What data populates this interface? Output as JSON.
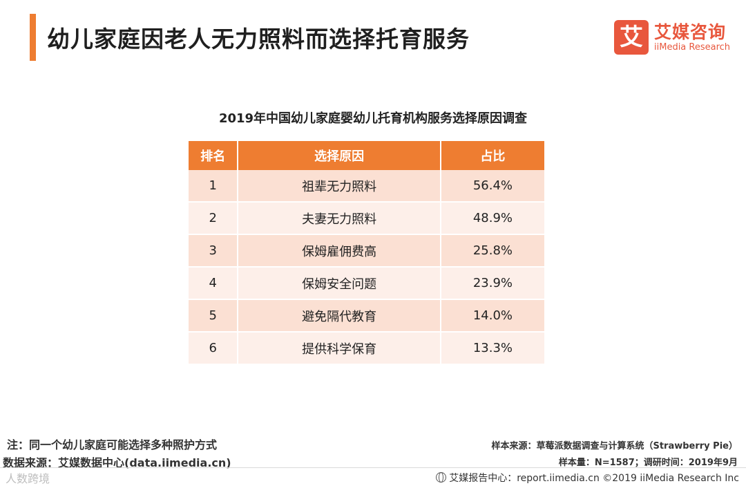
{
  "header": {
    "title": "幼儿家庭因老人无力照料而选择托育服务",
    "logo_mark": "艾",
    "logo_cn": "艾媒咨询",
    "logo_en": "iiMedia Research",
    "accent_color": "#ee7d31"
  },
  "table": {
    "title": "2019年中国幼儿家庭婴幼儿托育机构服务选择原因调查",
    "headers": [
      "排名",
      "选择原因",
      "占比"
    ],
    "rows": [
      {
        "rank": "1",
        "reason": "祖辈无力照料",
        "pct": "56.4%"
      },
      {
        "rank": "2",
        "reason": "夫妻无力照料",
        "pct": "48.9%"
      },
      {
        "rank": "3",
        "reason": "保姆雇佣费高",
        "pct": "25.8%"
      },
      {
        "rank": "4",
        "reason": "保姆安全问题",
        "pct": "23.9%"
      },
      {
        "rank": "5",
        "reason": "避免隔代教育",
        "pct": "14.0%"
      },
      {
        "rank": "6",
        "reason": "提供科学保育",
        "pct": "13.3%"
      }
    ]
  },
  "notes": {
    "note": "注：同一个幼儿家庭可能选择多种照护方式",
    "data_source": "数据来源：艾媒数据中心(data.iimedia.cn)",
    "sample_source": "样本来源：草莓派数据调查与计算系统（Strawberry Pie）",
    "sample_size": "样本量：N=1587；调研时间：2019年9月",
    "watermark": "人数跨境"
  },
  "footer": {
    "text": "艾媒报告中心：report.iimedia.cn   ©2019  iiMedia Research  Inc"
  }
}
